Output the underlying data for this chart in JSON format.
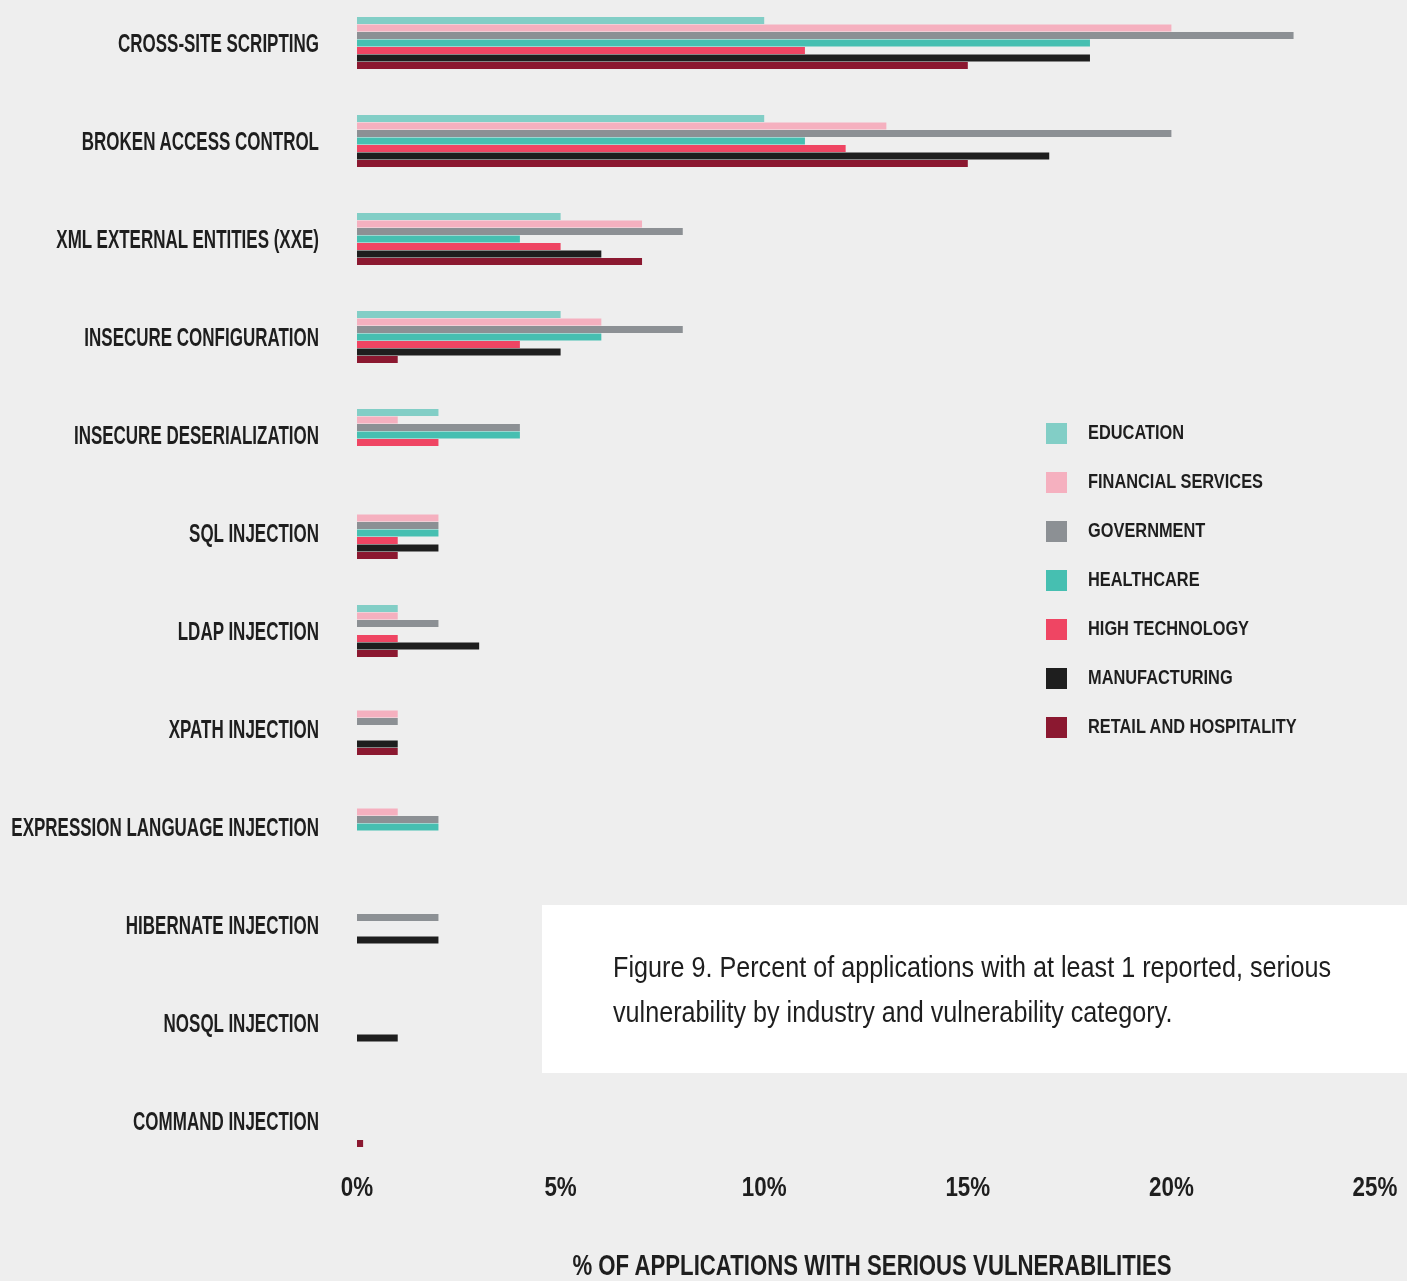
{
  "chart_data": {
    "type": "bar",
    "orientation": "horizontal",
    "xlabel": "% OF APPLICATIONS WITH SERIOUS VULNERABILITIES",
    "categories": [
      "CROSS-SITE SCRIPTING",
      "BROKEN ACCESS CONTROL",
      "XML EXTERNAL ENTITIES (XXE)",
      "INSECURE CONFIGURATION",
      "INSECURE DESERIALIZATION",
      "SQL INJECTION",
      "LDAP INJECTION",
      "XPATH INJECTION",
      "EXPRESSION LANGUAGE INJECTION",
      "HIBERNATE INJECTION",
      "NOSQL INJECTION",
      "COMMAND INJECTION"
    ],
    "series": [
      {
        "name": "EDUCATION",
        "color": "#82cec6",
        "values": [
          10,
          10,
          5,
          5,
          2,
          null,
          1,
          null,
          null,
          null,
          null,
          null
        ]
      },
      {
        "name": "FINANCIAL SERVICES",
        "color": "#f5b0bf",
        "values": [
          20,
          13,
          7,
          6,
          1,
          2,
          1,
          1,
          1,
          null,
          null,
          null
        ]
      },
      {
        "name": "GOVERNMENT",
        "color": "#8c9094",
        "values": [
          23,
          20,
          8,
          8,
          4,
          2,
          2,
          1,
          2,
          2,
          null,
          null
        ]
      },
      {
        "name": "HEALTHCARE",
        "color": "#46bfb1",
        "values": [
          18,
          11,
          4,
          6,
          4,
          2,
          null,
          null,
          2,
          null,
          null,
          null
        ]
      },
      {
        "name": "HIGH TECHNOLOGY",
        "color": "#ef4563",
        "values": [
          11,
          12,
          5,
          4,
          2,
          1,
          1,
          null,
          null,
          null,
          null,
          null
        ]
      },
      {
        "name": "MANUFACTURING",
        "color": "#1e1e1e",
        "values": [
          18,
          17,
          6,
          5,
          null,
          2,
          3,
          1,
          null,
          2,
          1,
          null
        ]
      },
      {
        "name": "RETAIL AND HOSPITALITY",
        "color": "#8b1830",
        "values": [
          15,
          15,
          7,
          1,
          null,
          1,
          1,
          1,
          null,
          null,
          null,
          0.15
        ]
      }
    ],
    "xlim": [
      0,
      25
    ],
    "xticks": [
      {
        "value": 0,
        "label": "0%"
      },
      {
        "value": 5,
        "label": "5%"
      },
      {
        "value": 10,
        "label": "10%"
      },
      {
        "value": 15,
        "label": "15%"
      },
      {
        "value": 20,
        "label": "20%"
      },
      {
        "value": 25,
        "label": "25%"
      }
    ],
    "legend": "right",
    "grid": false,
    "annotations": [
      "Figure 9. Percent of applications with at least 1 reported, serious vulnerability by industry and vulnerability category."
    ]
  }
}
